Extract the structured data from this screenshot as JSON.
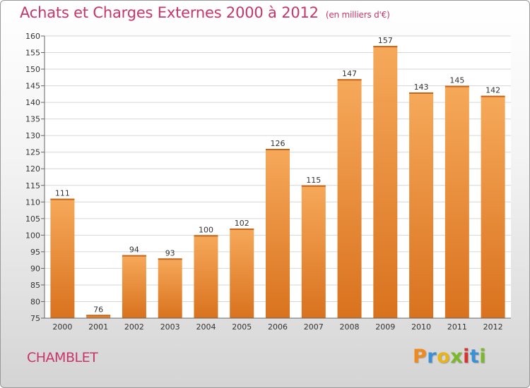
{
  "title": "Achats et Charges Externes 2000 à 2012",
  "subtitle": "(en milliers d'€)",
  "town": "CHAMBLET",
  "logo": {
    "letters": [
      "P",
      "r",
      "o",
      "x",
      "i",
      "t",
      "i"
    ],
    "colors": [
      "#f08a1c",
      "#3a8fd6",
      "#e9b31a",
      "#7bb82a",
      "#d6332e",
      "#3a8fd6",
      "#7bb82a"
    ]
  },
  "colors": {
    "bar_top": "#f6a95a",
    "bar_bottom": "#d9721e",
    "title": "#c8356a"
  },
  "chart_data": {
    "type": "bar",
    "categories": [
      "2000",
      "2001",
      "2002",
      "2003",
      "2004",
      "2005",
      "2006",
      "2007",
      "2008",
      "2009",
      "2010",
      "2011",
      "2012"
    ],
    "values": [
      111,
      76,
      94,
      93,
      100,
      102,
      126,
      115,
      147,
      157,
      143,
      145,
      142
    ],
    "ylim": [
      75,
      160
    ],
    "yticks": [
      75,
      80,
      85,
      90,
      95,
      100,
      105,
      110,
      115,
      120,
      125,
      130,
      135,
      140,
      145,
      150,
      155,
      160
    ],
    "grid": true
  }
}
